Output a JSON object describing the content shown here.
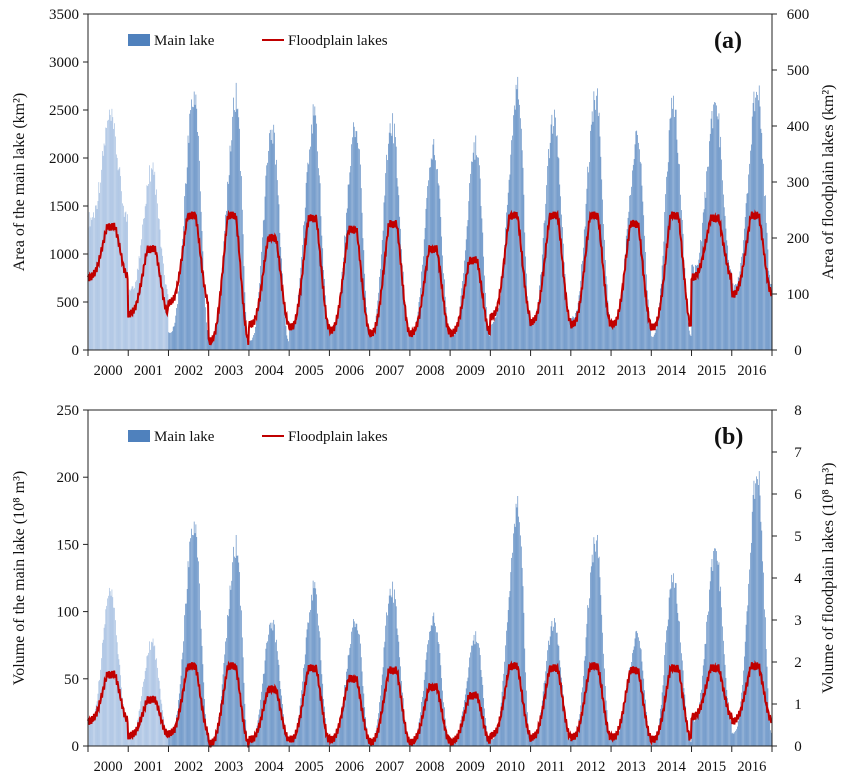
{
  "chart_data": [
    {
      "type": "bar",
      "panel_label": "(a)",
      "ylabel": "Area of the main lake (km²)",
      "y2label": "Area of floodplain  lakes (km²)",
      "ylim": [
        0,
        3500
      ],
      "y2lim": [
        0,
        600
      ],
      "yticks": [
        "0",
        "500",
        "1000",
        "1500",
        "2000",
        "2500",
        "3000",
        "3500"
      ],
      "y2ticks": [
        "0",
        "100",
        "200",
        "300",
        "400",
        "500",
        "600"
      ],
      "xticks": [
        "2000",
        "2001",
        "2002",
        "2003",
        "2004",
        "2005",
        "2006",
        "2007",
        "2008",
        "2009",
        "2010",
        "2011",
        "2012",
        "2013",
        "2014",
        "2015",
        "2016"
      ],
      "grid": false,
      "legend_position": "top-left",
      "series": [
        {
          "name": "Main lake",
          "kind": "bar",
          "axis": "left",
          "color": "#4f81bd",
          "lite_color": "#9bb8de",
          "annual_peaks": [
            2550,
            2000,
            2870,
            2800,
            2450,
            2620,
            2530,
            2520,
            2280,
            2250,
            2890,
            2550,
            2820,
            2400,
            2700,
            2700,
            2890
          ],
          "annual_lows": [
            1450,
            650,
            200,
            100,
            100,
            250,
            200,
            200,
            200,
            150,
            300,
            300,
            350,
            300,
            150,
            900,
            700
          ]
        },
        {
          "name": "Floodplain lakes",
          "kind": "line",
          "axis": "right",
          "color": "#c00000",
          "annual_peaks": [
            220,
            180,
            240,
            240,
            200,
            235,
            215,
            225,
            180,
            160,
            240,
            240,
            240,
            225,
            240,
            235,
            240
          ],
          "annual_lows": [
            130,
            65,
            85,
            15,
            45,
            40,
            35,
            30,
            30,
            30,
            60,
            50,
            45,
            45,
            40,
            130,
            100
          ]
        }
      ]
    },
    {
      "type": "bar",
      "panel_label": "(b)",
      "ylabel": "Volume of the main lake (10⁸ m³)",
      "y2label": "Volume of floodplain  lakes (10⁸ m³)",
      "ylim": [
        0,
        250
      ],
      "y2lim": [
        0,
        8
      ],
      "yticks": [
        "0",
        "50",
        "100",
        "150",
        "200",
        "250"
      ],
      "y2ticks": [
        "0",
        "1",
        "2",
        "3",
        "4",
        "5",
        "6",
        "7",
        "8"
      ],
      "xticks": [
        "2000",
        "2001",
        "2002",
        "2003",
        "2004",
        "2005",
        "2006",
        "2007",
        "2008",
        "2009",
        "2010",
        "2011",
        "2012",
        "2013",
        "2014",
        "2015",
        "2016"
      ],
      "grid": false,
      "legend_position": "top-left",
      "series": [
        {
          "name": "Main lake",
          "kind": "bar",
          "axis": "left",
          "color": "#4f81bd",
          "lite_color": "#9bb8de",
          "annual_peaks": [
            120,
            82,
            178,
            158,
            98,
            126,
            101,
            125,
            103,
            86,
            189,
            97,
            163,
            90,
            131,
            154,
            216
          ],
          "annual_lows": [
            18,
            8,
            8,
            2,
            3,
            4,
            4,
            3,
            3,
            3,
            5,
            5,
            5,
            5,
            3,
            20,
            10
          ]
        },
        {
          "name": "Floodplain lakes",
          "kind": "line",
          "axis": "right",
          "color": "#c00000",
          "annual_peaks": [
            1.7,
            1.1,
            1.9,
            1.9,
            1.35,
            1.85,
            1.6,
            1.8,
            1.4,
            1.2,
            1.9,
            1.85,
            1.9,
            1.8,
            1.85,
            1.85,
            1.9
          ],
          "annual_lows": [
            0.6,
            0.25,
            0.3,
            0.05,
            0.15,
            0.15,
            0.15,
            0.1,
            0.1,
            0.1,
            0.25,
            0.2,
            0.2,
            0.2,
            0.15,
            0.7,
            0.6
          ]
        }
      ]
    }
  ]
}
